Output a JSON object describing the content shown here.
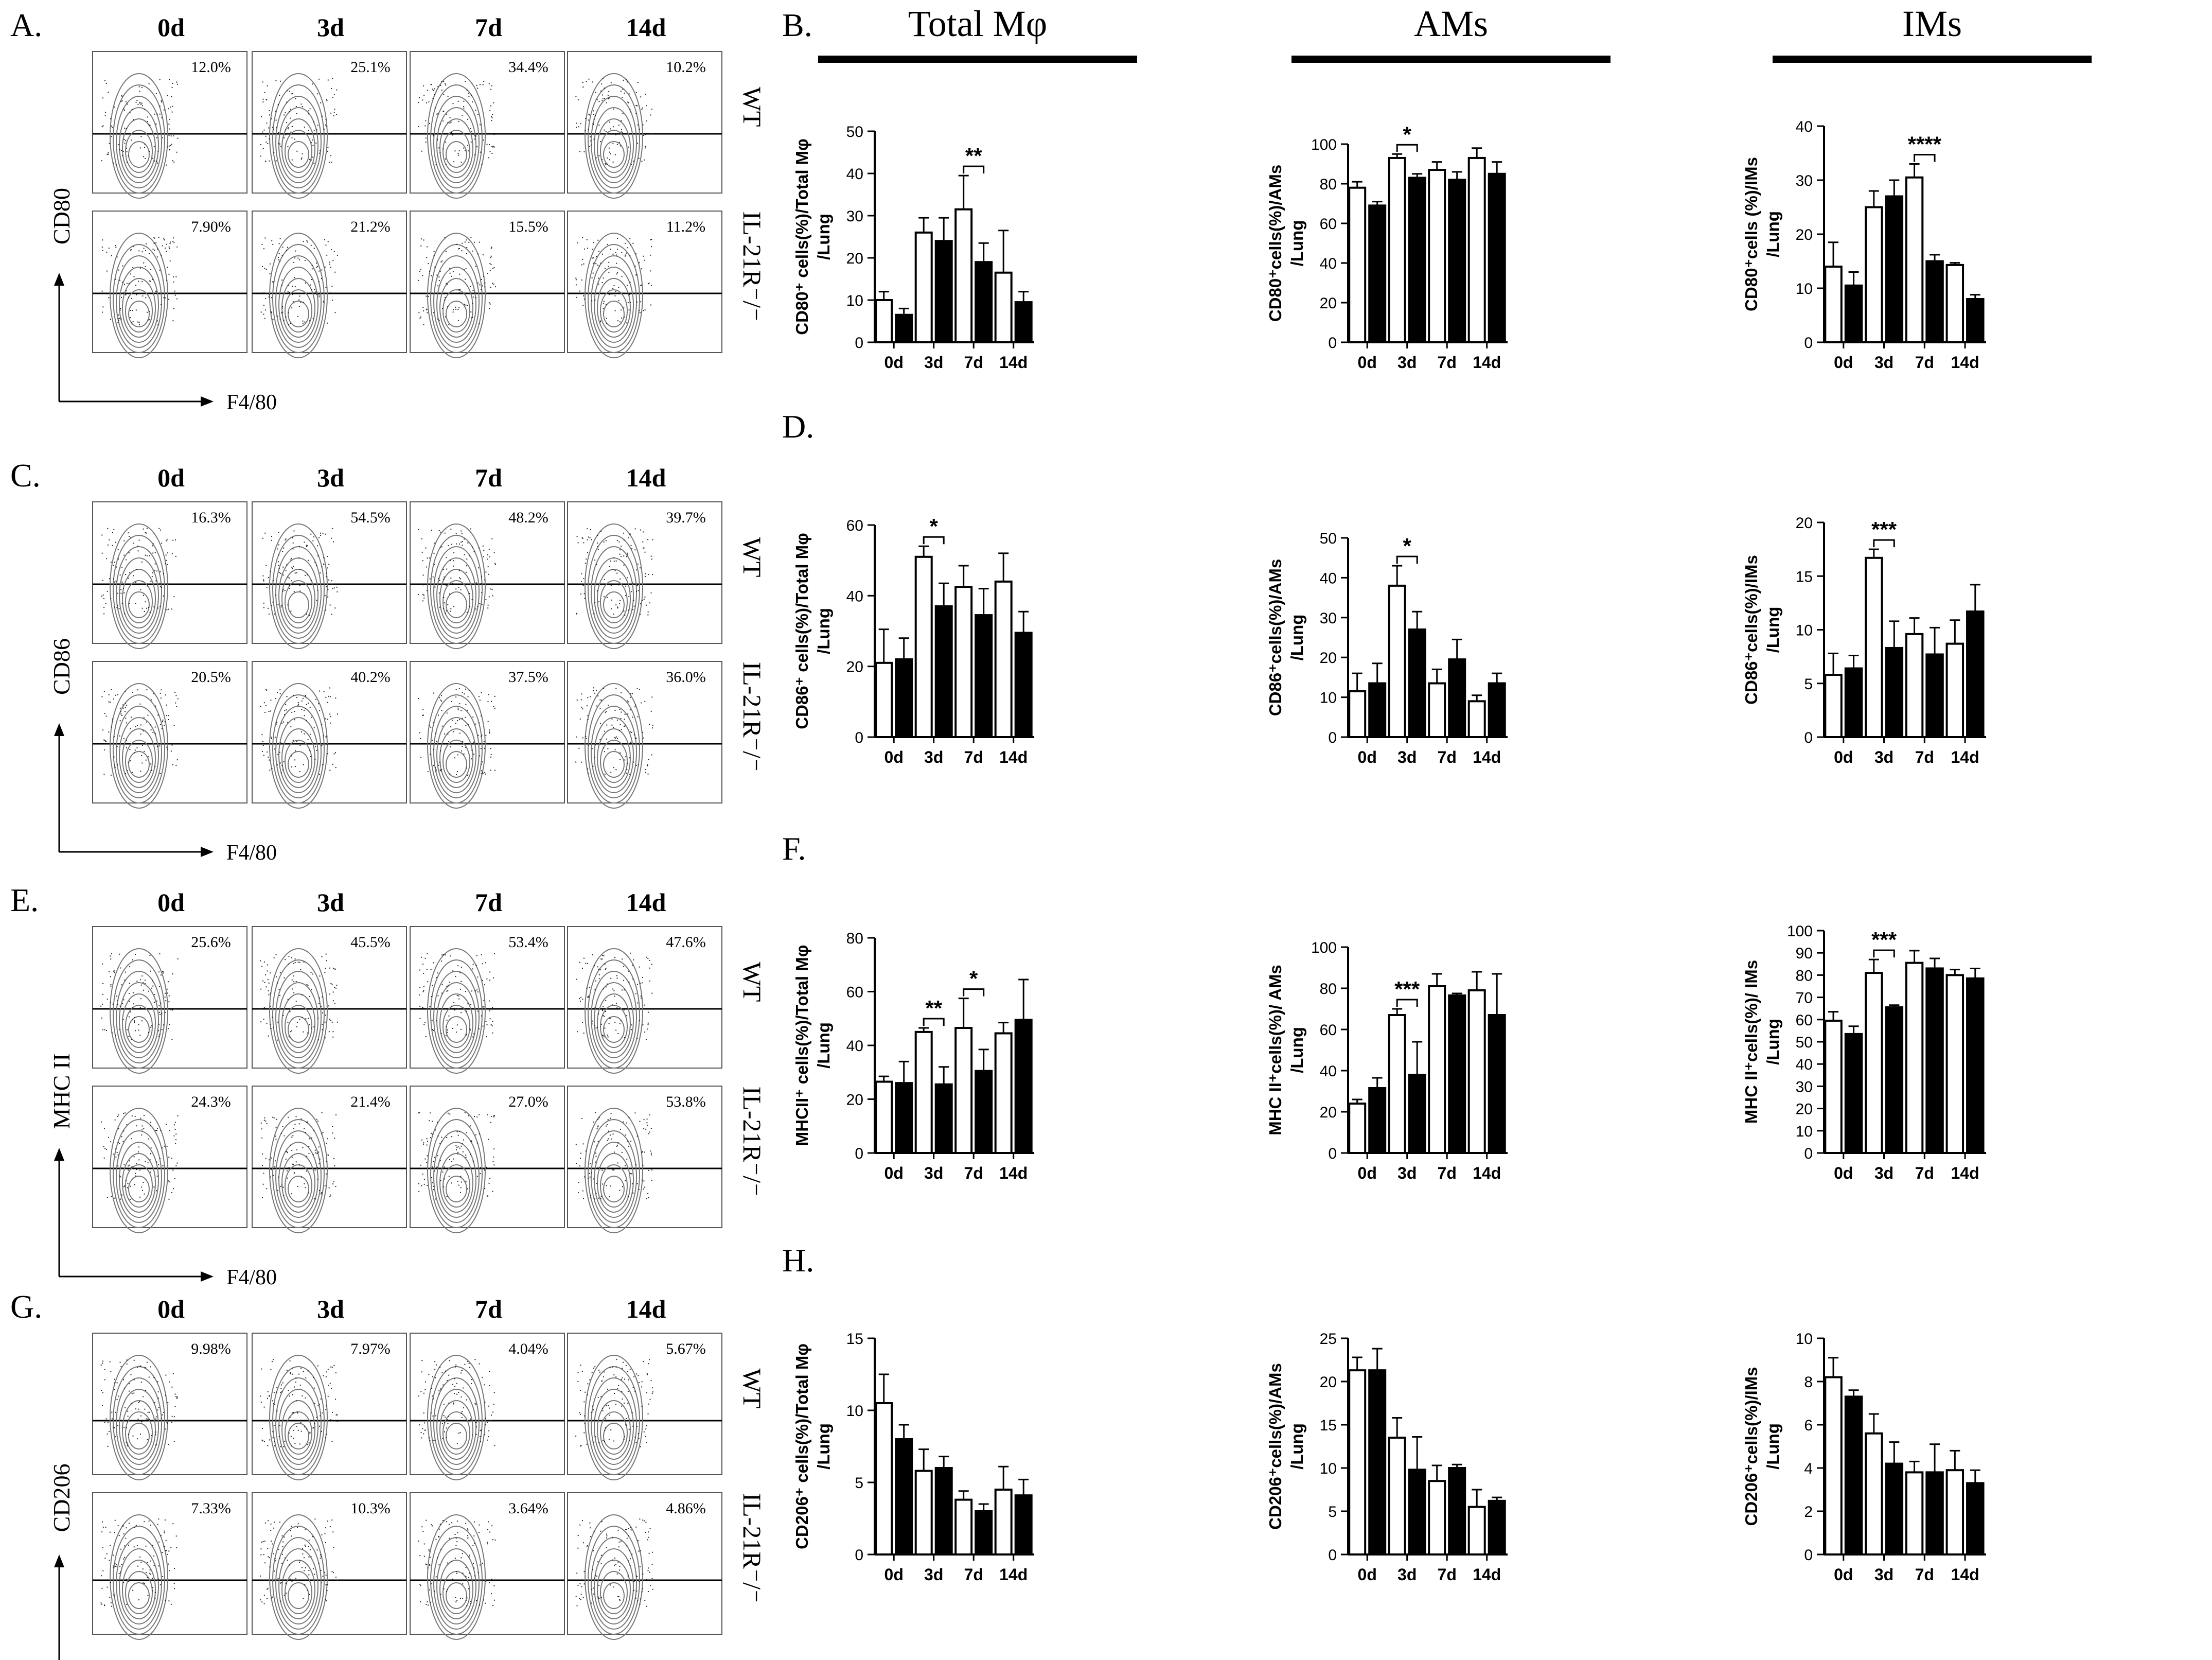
{
  "figure": {
    "columns": [
      "Total Mφ",
      "AMs",
      "IMs"
    ],
    "flow_days": [
      "0d",
      "3d",
      "7d",
      "14d"
    ],
    "row_labels": [
      "WT",
      "IL-21R⁻/⁻"
    ],
    "x_axis_label": "F4/80",
    "colors": {
      "wt_fill": "#ffffff",
      "ko_fill": "#000000",
      "ink": "#000000",
      "contour": "#777777"
    }
  },
  "flow_panels": [
    {
      "letter": "A.",
      "marker": "CD80",
      "wt": [
        "12.0%",
        "25.1%",
        "34.4%",
        "10.2%"
      ],
      "ko": [
        "7.90%",
        "21.2%",
        "15.5%",
        "11.2%"
      ]
    },
    {
      "letter": "C.",
      "marker": "CD86",
      "wt": [
        "16.3%",
        "54.5%",
        "48.2%",
        "39.7%"
      ],
      "ko": [
        "20.5%",
        "40.2%",
        "37.5%",
        "36.0%"
      ]
    },
    {
      "letter": "E.",
      "marker": "MHC II",
      "wt": [
        "25.6%",
        "45.5%",
        "53.4%",
        "47.6%"
      ],
      "ko": [
        "24.3%",
        "21.4%",
        "27.0%",
        "53.8%"
      ]
    },
    {
      "letter": "G.",
      "marker": "CD206",
      "wt": [
        "9.98%",
        "7.97%",
        "4.04%",
        "5.67%"
      ],
      "ko": [
        "7.33%",
        "10.3%",
        "3.64%",
        "4.86%"
      ]
    }
  ],
  "bar_rows": [
    {
      "letter": "B."
    },
    {
      "letter": "D."
    },
    {
      "letter": "F."
    },
    {
      "letter": "H."
    }
  ],
  "chart_data": [
    {
      "type": "bar",
      "panel": "B",
      "column": "Total Mφ",
      "ylabel": [
        "CD80⁺ cells(%)/Total Mφ",
        "/Lung"
      ],
      "categories": [
        "0d",
        "3d",
        "7d",
        "14d"
      ],
      "ylim": [
        0,
        50
      ],
      "yticks": [
        0,
        10,
        20,
        30,
        40,
        50
      ],
      "series": [
        {
          "name": "WT",
          "values": [
            10,
            26,
            31.5,
            16.5
          ],
          "err": [
            2,
            3.5,
            8,
            10
          ]
        },
        {
          "name": "IL-21R-/-",
          "values": [
            6.5,
            24,
            19,
            9.5
          ],
          "err": [
            1.5,
            5.5,
            4.5,
            2.5
          ]
        }
      ],
      "sig": [
        {
          "cat": 2,
          "label": "**"
        }
      ]
    },
    {
      "type": "bar",
      "panel": "B",
      "column": "AMs",
      "ylabel": [
        "CD80⁺cells(%)/AMs",
        "/Lung"
      ],
      "categories": [
        "0d",
        "3d",
        "7d",
        "14d"
      ],
      "ylim": [
        0,
        100
      ],
      "yticks": [
        0,
        20,
        40,
        60,
        80,
        100
      ],
      "series": [
        {
          "name": "WT",
          "values": [
            78,
            93,
            87,
            93
          ],
          "err": [
            3,
            2,
            4,
            5
          ]
        },
        {
          "name": "IL-21R-/-",
          "values": [
            69,
            83,
            82,
            85
          ],
          "err": [
            2,
            2,
            4,
            6
          ]
        }
      ],
      "sig": [
        {
          "cat": 1,
          "label": "*"
        }
      ]
    },
    {
      "type": "bar",
      "panel": "B",
      "column": "IMs",
      "ylabel": [
        "CD80⁺cells (%)/IMs",
        "/Lung"
      ],
      "categories": [
        "0d",
        "3d",
        "7d",
        "14d"
      ],
      "ylim": [
        0,
        40
      ],
      "yticks": [
        0,
        10,
        20,
        30,
        40
      ],
      "series": [
        {
          "name": "WT",
          "values": [
            14,
            25,
            30.5,
            14.3
          ],
          "err": [
            4.5,
            3,
            2.5,
            0.4
          ]
        },
        {
          "name": "IL-21R-/-",
          "values": [
            10.5,
            27,
            15,
            8
          ],
          "err": [
            2.5,
            3,
            1.2,
            0.8
          ]
        }
      ],
      "sig": [
        {
          "cat": 2,
          "label": "****"
        }
      ]
    },
    {
      "type": "bar",
      "panel": "D",
      "column": "Total Mφ",
      "ylabel": [
        "CD86⁺ cells(%)/Total Mφ",
        "/Lung"
      ],
      "categories": [
        "0d",
        "3d",
        "7d",
        "14d"
      ],
      "ylim": [
        0,
        60
      ],
      "yticks": [
        0,
        20,
        40,
        60
      ],
      "series": [
        {
          "name": "WT",
          "values": [
            21,
            51,
            42.5,
            44
          ],
          "err": [
            9.5,
            3,
            6,
            8
          ]
        },
        {
          "name": "IL-21R-/-",
          "values": [
            22,
            37,
            34.5,
            29.5
          ],
          "err": [
            6,
            6.5,
            7.5,
            6
          ]
        }
      ],
      "sig": [
        {
          "cat": 1,
          "label": "*"
        }
      ]
    },
    {
      "type": "bar",
      "panel": "D",
      "column": "AMs",
      "ylabel": [
        "CD86⁺cells(%)/AMs",
        "/Lung"
      ],
      "categories": [
        "0d",
        "3d",
        "7d",
        "14d"
      ],
      "ylim": [
        0,
        50
      ],
      "yticks": [
        0,
        10,
        20,
        30,
        40,
        50
      ],
      "series": [
        {
          "name": "WT",
          "values": [
            11.5,
            38,
            13.5,
            9
          ],
          "err": [
            4.5,
            5,
            3.5,
            1.5
          ]
        },
        {
          "name": "IL-21R-/-",
          "values": [
            13.5,
            27,
            19.5,
            13.5
          ],
          "err": [
            5,
            4.5,
            5,
            2.5
          ]
        }
      ],
      "sig": [
        {
          "cat": 1,
          "label": "*"
        }
      ]
    },
    {
      "type": "bar",
      "panel": "D",
      "column": "IMs",
      "ylabel": [
        "CD86⁺cells(%)/IMs",
        "/Lung"
      ],
      "categories": [
        "0d",
        "3d",
        "7d",
        "14d"
      ],
      "ylim": [
        0,
        20
      ],
      "yticks": [
        0,
        5,
        10,
        15,
        20
      ],
      "series": [
        {
          "name": "WT",
          "values": [
            5.8,
            16.7,
            9.6,
            8.7
          ],
          "err": [
            2,
            0.8,
            1.5,
            2.2
          ]
        },
        {
          "name": "IL-21R-/-",
          "values": [
            6.4,
            8.3,
            7.7,
            11.7
          ],
          "err": [
            1.2,
            2.5,
            2.5,
            2.5
          ]
        }
      ],
      "sig": [
        {
          "cat": 1,
          "label": "***"
        }
      ]
    },
    {
      "type": "bar",
      "panel": "F",
      "column": "Total Mφ",
      "ylabel": [
        "MHCII⁺ cells(%)/Total Mφ",
        "/Lung"
      ],
      "categories": [
        "0d",
        "3d",
        "7d",
        "14d"
      ],
      "ylim": [
        0,
        80
      ],
      "yticks": [
        0,
        20,
        40,
        60,
        80
      ],
      "series": [
        {
          "name": "WT",
          "values": [
            26.5,
            45,
            46.5,
            44.5
          ],
          "err": [
            2,
            1.5,
            11,
            4
          ]
        },
        {
          "name": "IL-21R-/-",
          "values": [
            26,
            25.5,
            30.5,
            49.5
          ],
          "err": [
            8,
            6.5,
            8,
            15
          ]
        }
      ],
      "sig": [
        {
          "cat": 1,
          "label": "**"
        },
        {
          "cat": 2,
          "label": "*"
        }
      ]
    },
    {
      "type": "bar",
      "panel": "F",
      "column": "AMs",
      "ylabel": [
        "MHC II⁺cells(%)/ AMs",
        "/Lung"
      ],
      "categories": [
        "0d",
        "3d",
        "7d",
        "14d"
      ],
      "ylim": [
        0,
        100
      ],
      "yticks": [
        0,
        20,
        40,
        60,
        80,
        100
      ],
      "series": [
        {
          "name": "WT",
          "values": [
            24,
            67,
            81,
            79
          ],
          "err": [
            2,
            3,
            6,
            9
          ]
        },
        {
          "name": "IL-21R-/-",
          "values": [
            31.5,
            38,
            76.5,
            67
          ],
          "err": [
            5,
            16,
            1,
            20
          ]
        }
      ],
      "sig": [
        {
          "cat": 1,
          "label": "***"
        }
      ]
    },
    {
      "type": "bar",
      "panel": "F",
      "column": "IMs",
      "ylabel": [
        "MHC II⁺cells(%)/ IMs",
        "/Lung"
      ],
      "categories": [
        "0d",
        "3d",
        "7d",
        "14d"
      ],
      "ylim": [
        0,
        100
      ],
      "yticks": [
        0,
        10,
        20,
        30,
        40,
        50,
        60,
        70,
        80,
        90,
        100
      ],
      "series": [
        {
          "name": "WT",
          "values": [
            59.5,
            81,
            85.5,
            80
          ],
          "err": [
            4,
            6,
            5.5,
            2.5
          ]
        },
        {
          "name": "IL-21R-/-",
          "values": [
            53.5,
            65.5,
            83,
            78.5
          ],
          "err": [
            3.5,
            1,
            4.5,
            4.5
          ]
        }
      ],
      "sig": [
        {
          "cat": 1,
          "label": "***"
        }
      ]
    },
    {
      "type": "bar",
      "panel": "H",
      "column": "Total Mφ",
      "ylabel": [
        "CD206⁺ cells(%)/Total Mφ",
        "/Lung"
      ],
      "categories": [
        "0d",
        "3d",
        "7d",
        "14d"
      ],
      "ylim": [
        0,
        15
      ],
      "yticks": [
        0,
        5,
        10,
        15
      ],
      "series": [
        {
          "name": "WT",
          "values": [
            10.5,
            5.8,
            3.8,
            4.5
          ],
          "err": [
            2,
            1.5,
            0.6,
            1.6
          ]
        },
        {
          "name": "IL-21R-/-",
          "values": [
            8,
            6,
            3,
            4.1
          ],
          "err": [
            1,
            0.8,
            0.5,
            1.1
          ]
        }
      ],
      "sig": []
    },
    {
      "type": "bar",
      "panel": "H",
      "column": "AMs",
      "ylabel": [
        "CD206⁺cells(%)/AMs",
        "/Lung"
      ],
      "categories": [
        "0d",
        "3d",
        "7d",
        "14d"
      ],
      "ylim": [
        0,
        25
      ],
      "yticks": [
        0,
        5,
        10,
        15,
        20,
        25
      ],
      "series": [
        {
          "name": "WT",
          "values": [
            21.3,
            13.5,
            8.5,
            5.5
          ],
          "err": [
            1.5,
            2.3,
            1.8,
            2
          ]
        },
        {
          "name": "IL-21R-/-",
          "values": [
            21.3,
            9.8,
            10,
            6.2
          ],
          "err": [
            2.5,
            3.8,
            0.4,
            0.4
          ]
        }
      ],
      "sig": []
    },
    {
      "type": "bar",
      "panel": "H",
      "column": "IMs",
      "ylabel": [
        "CD206⁺cells(%)/IMs",
        "/Lung"
      ],
      "categories": [
        "0d",
        "3d",
        "7d",
        "14d"
      ],
      "ylim": [
        0,
        10
      ],
      "yticks": [
        0,
        2,
        4,
        6,
        8,
        10
      ],
      "series": [
        {
          "name": "WT",
          "values": [
            8.2,
            5.6,
            3.8,
            3.9
          ],
          "err": [
            0.9,
            0.9,
            0.5,
            0.9
          ]
        },
        {
          "name": "IL-21R-/-",
          "values": [
            7.3,
            4.2,
            3.8,
            3.3
          ],
          "err": [
            0.3,
            1,
            1.3,
            0.6
          ]
        }
      ],
      "sig": []
    }
  ]
}
